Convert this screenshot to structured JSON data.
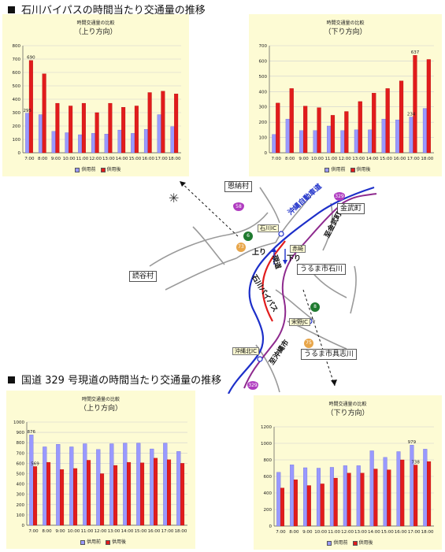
{
  "sections": {
    "top_title": "石川バイパスの時間当たり交通量の推移",
    "bottom_title": "国道 329 号現道の時間当たり交通量の推移"
  },
  "legend": {
    "before": "供用前",
    "after": "供用後"
  },
  "colors": {
    "before": "#9999ff",
    "after": "#e11c1c",
    "panel": "#fdfbd4",
    "route_blue": "#1d2fc9",
    "route_red": "#e11c1c",
    "route_purple": "#8e2a8e"
  },
  "map": {
    "labels": {
      "onna": "恩納村",
      "kin": "金武町",
      "chatan": "読谷村",
      "ishikawa": "うるま市石川",
      "gushikawa": "うるま市具志川",
      "ishikawa_ic": "石川IC",
      "akasaki": "赤崎",
      "uruma_ic": "宋野JC",
      "okinawa_kita_ic": "沖縄北IC",
      "nobori": "上り",
      "kudari": "下り",
      "expressway": "沖縄自動車道",
      "bypass": "石川バイパス",
      "gendo": "現道",
      "to_kin": "至金武町",
      "to_okinawa": "至沖縄市",
      "r58": "58",
      "r329": "329",
      "r6": "6",
      "r73": "73",
      "r8": "8",
      "r75": "75",
      "r329b": "329"
    },
    "icons": {
      "compass": "compass-rose-icon"
    }
  },
  "chart_data": [
    {
      "type": "bar",
      "title": "時間交通量の比較",
      "subtitle": "（上り方向）",
      "categories": [
        "7:00",
        "8:00",
        "9:00",
        "10:00",
        "11:00",
        "12:00",
        "13:00",
        "14:00",
        "15:00",
        "16:00",
        "17:00",
        "18:00"
      ],
      "series": [
        {
          "name": "供用前",
          "values": [
            295,
            285,
            160,
            150,
            135,
            145,
            140,
            170,
            145,
            175,
            285,
            195
          ]
        },
        {
          "name": "供用後",
          "values": [
            690,
            590,
            370,
            350,
            370,
            300,
            370,
            340,
            350,
            450,
            460,
            440
          ]
        }
      ],
      "ylim": [
        0,
        800
      ],
      "ytick_step": 100,
      "annotations": [
        {
          "series": 0,
          "index": 0,
          "label": "295"
        },
        {
          "series": 1,
          "index": 0,
          "label": "690"
        }
      ]
    },
    {
      "type": "bar",
      "title": "時間交通量の比較",
      "subtitle": "（下り方向）",
      "categories": [
        "7:00",
        "8:00",
        "9:00",
        "10:00",
        "11:00",
        "12:00",
        "13:00",
        "14:00",
        "15:00",
        "16:00",
        "17:00",
        "18:00"
      ],
      "series": [
        {
          "name": "供用前",
          "values": [
            120,
            220,
            145,
            145,
            175,
            145,
            150,
            150,
            220,
            215,
            234,
            290
          ]
        },
        {
          "name": "供用後",
          "values": [
            325,
            420,
            305,
            295,
            245,
            270,
            335,
            390,
            420,
            470,
            637,
            610
          ]
        }
      ],
      "ylim": [
        0,
        700
      ],
      "ytick_step": 100,
      "annotations": [
        {
          "series": 0,
          "index": 10,
          "label": "234"
        },
        {
          "series": 1,
          "index": 10,
          "label": "637"
        }
      ]
    },
    {
      "type": "bar",
      "title": "時間交通量の比較",
      "subtitle": "（上り方向）",
      "categories": [
        "7:00",
        "8:00",
        "9:00",
        "10:00",
        "11:00",
        "12:00",
        "13:00",
        "14:00",
        "15:00",
        "16:00",
        "17:00",
        "18:00"
      ],
      "series": [
        {
          "name": "供用前",
          "values": [
            876,
            760,
            785,
            760,
            790,
            735,
            790,
            795,
            795,
            740,
            795,
            715
          ]
        },
        {
          "name": "供用後",
          "values": [
            569,
            610,
            540,
            550,
            630,
            500,
            580,
            610,
            605,
            650,
            635,
            600
          ]
        }
      ],
      "ylim": [
        0,
        1000
      ],
      "ytick_step": 100,
      "annotations": [
        {
          "series": 0,
          "index": 0,
          "label": "876"
        },
        {
          "series": 1,
          "index": 0,
          "label": "569"
        }
      ]
    },
    {
      "type": "bar",
      "title": "時間交通量の比較",
      "subtitle": "（下り方向）",
      "categories": [
        "7:00",
        "8:00",
        "9:00",
        "10:00",
        "11:00",
        "12:00",
        "13:00",
        "14:00",
        "15:00",
        "16:00",
        "17:00",
        "18:00"
      ],
      "series": [
        {
          "name": "供用前",
          "values": [
            650,
            740,
            705,
            700,
            710,
            730,
            730,
            910,
            830,
            900,
            979,
            930
          ]
        },
        {
          "name": "供用後",
          "values": [
            460,
            560,
            490,
            510,
            580,
            640,
            640,
            690,
            680,
            800,
            738,
            780
          ]
        }
      ],
      "ylim": [
        0,
        1200
      ],
      "ytick_step": 200,
      "annotations": [
        {
          "series": 0,
          "index": 10,
          "label": "979"
        },
        {
          "series": 1,
          "index": 10,
          "label": "738"
        }
      ]
    }
  ]
}
